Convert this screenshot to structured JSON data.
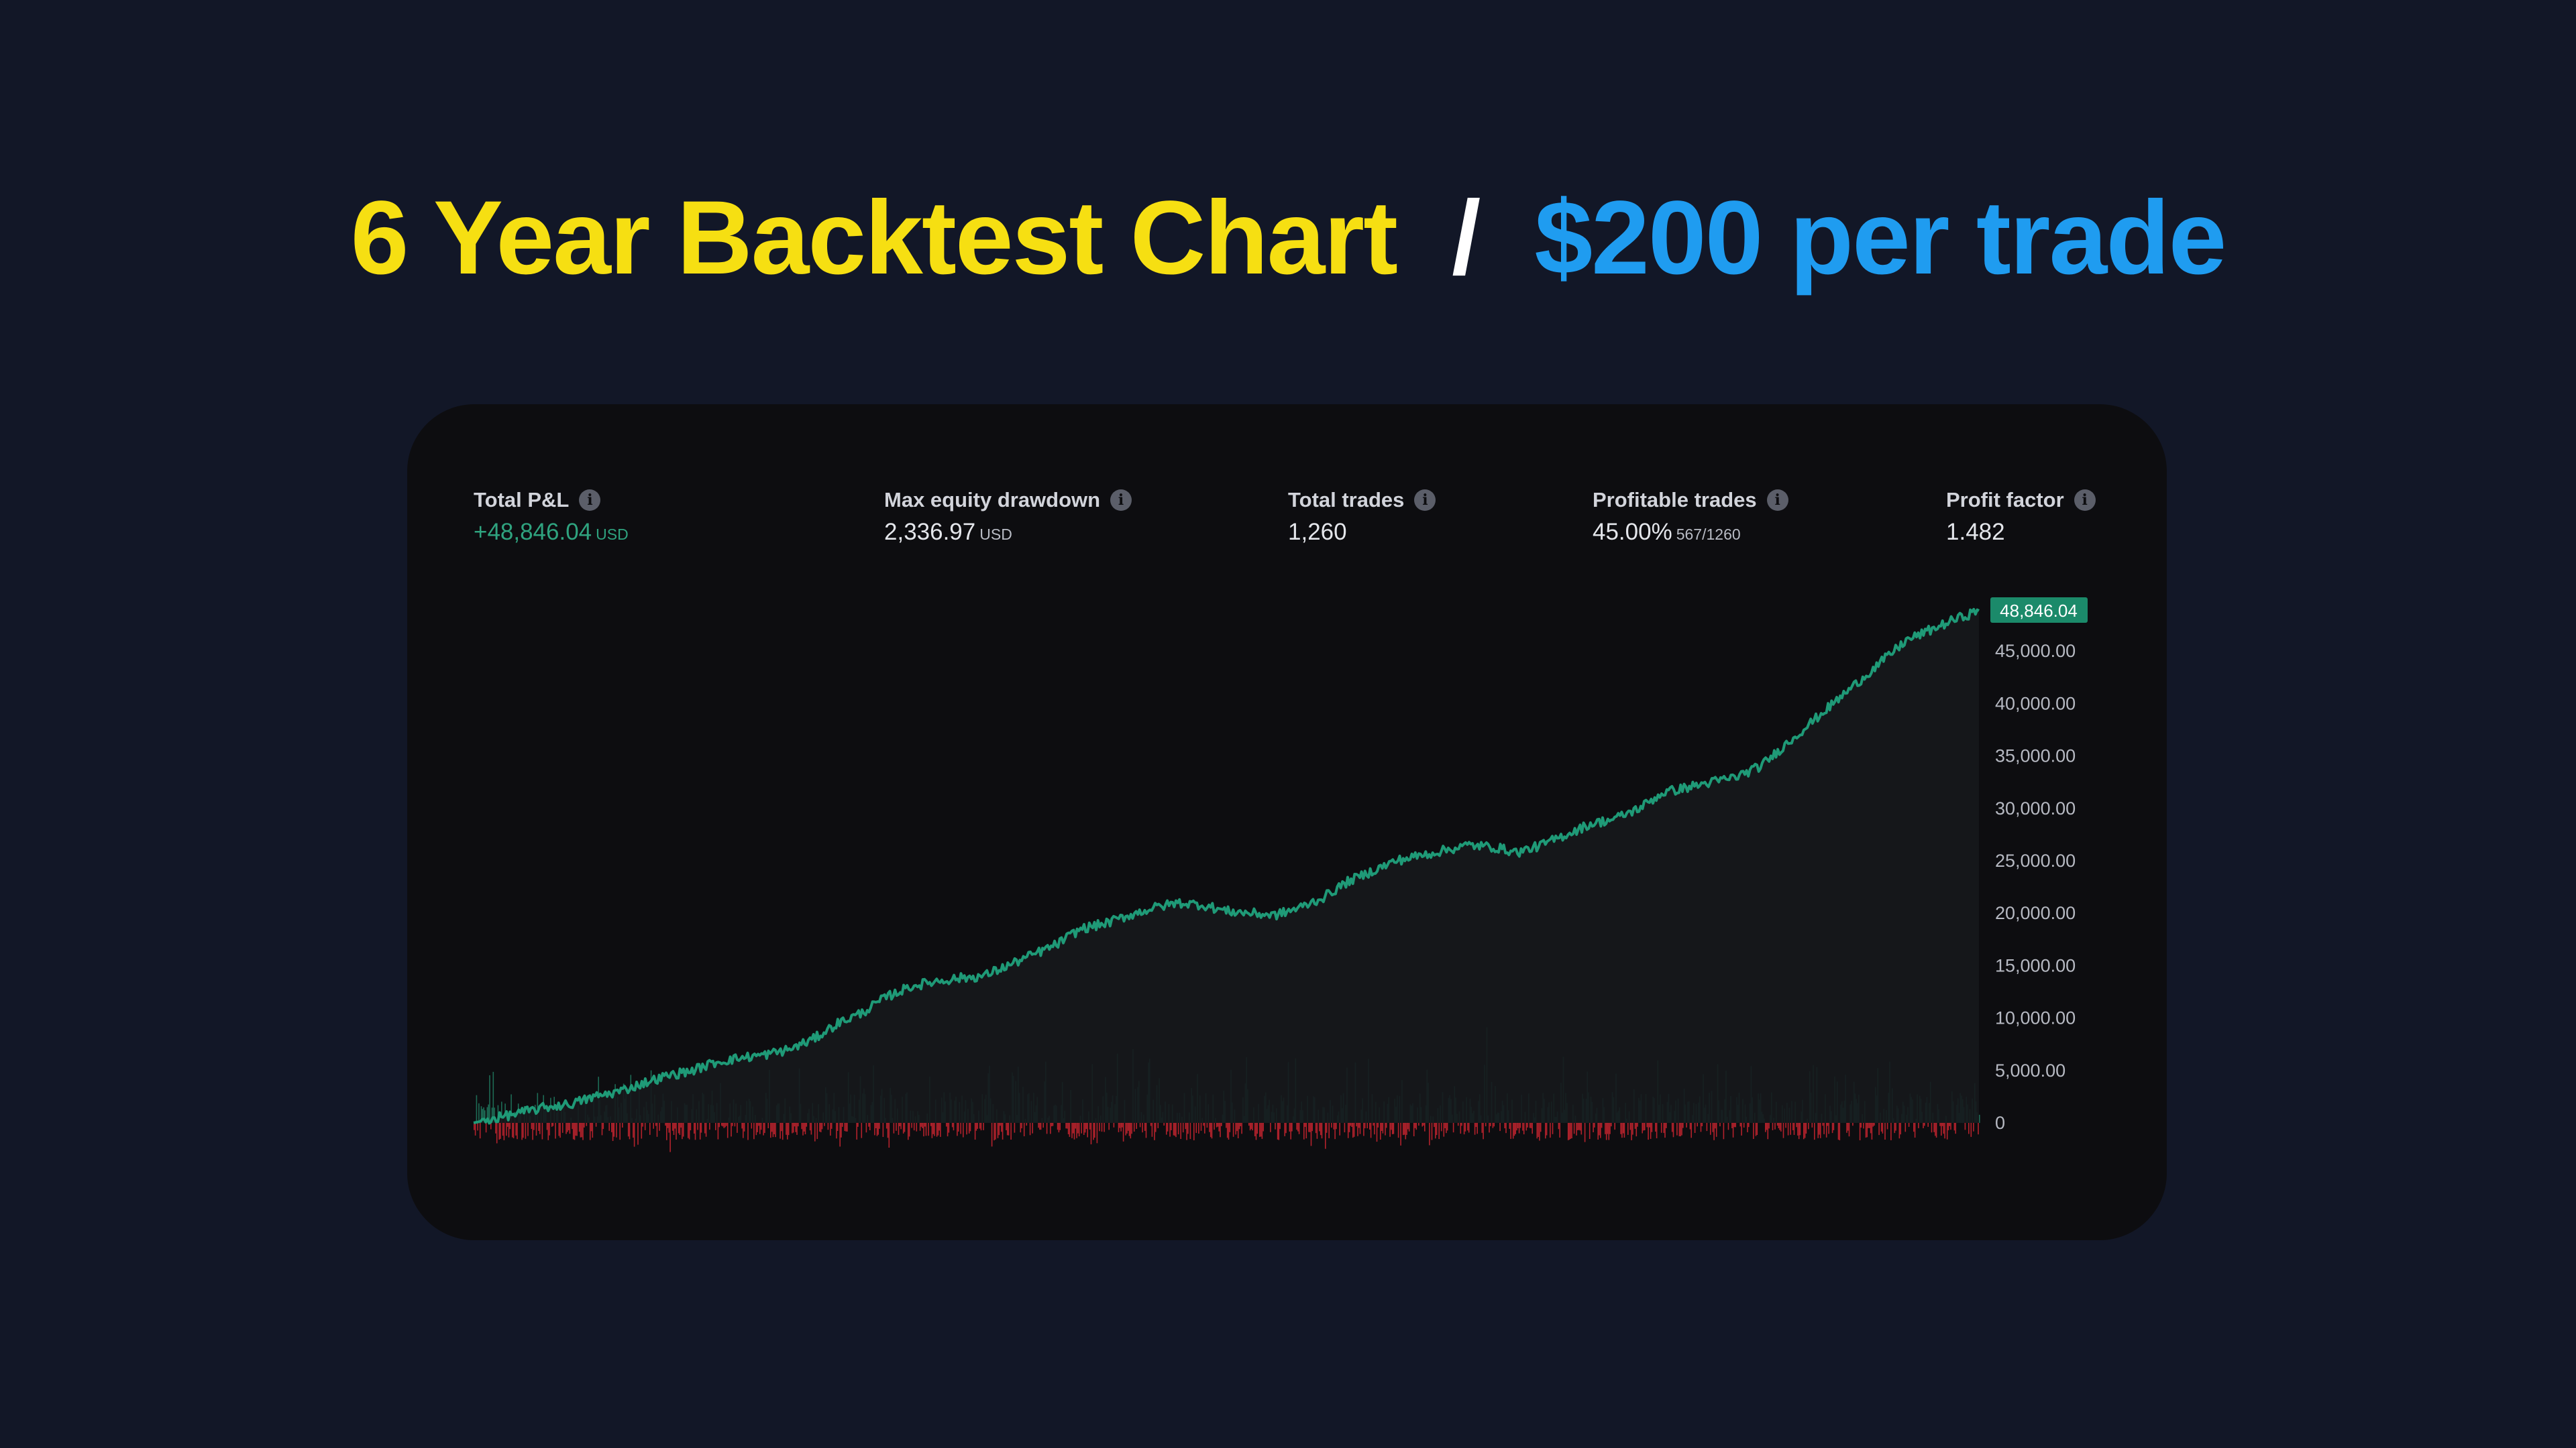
{
  "headline": {
    "part1": "6 Year Backtest Chart",
    "separator": "/",
    "part2": "$200 per trade",
    "colors": {
      "part1": "#f6df12",
      "separator": "#ffffff",
      "part2": "#1f9cf0"
    }
  },
  "metrics": [
    {
      "label": "Total P&L",
      "value": "+48,846.04",
      "unit": "USD",
      "positive": true
    },
    {
      "label": "Max equity drawdown",
      "value": "2,336.97",
      "unit": "USD"
    },
    {
      "label": "Total trades",
      "value": "1,260",
      "unit": ""
    },
    {
      "label": "Profitable trades",
      "value": "45.00%",
      "unit": "567/1260"
    },
    {
      "label": "Profit factor",
      "value": "1.482",
      "unit": ""
    }
  ],
  "chart_data": {
    "type": "line",
    "series": [
      {
        "values": [
          0,
          500,
          1000,
          1500,
          1800,
          2500,
          3000,
          3800,
          4500,
          5000,
          5800,
          6200,
          6500,
          7000,
          8000,
          9500,
          10500,
          12000,
          13000,
          13500,
          13800,
          14000,
          15000,
          16000,
          17000,
          18500,
          19000,
          19800,
          20500,
          21000,
          20800,
          20200,
          20000,
          19800,
          20500,
          21500,
          23000,
          24000,
          25000,
          25500,
          26000,
          26500,
          26300,
          25800,
          26500,
          27500,
          28500,
          29000,
          30000,
          31500,
          32000,
          32500,
          33000,
          34000,
          36000,
          38000,
          40000,
          42000,
          44000,
          46000,
          47000,
          48000,
          48846.04
        ],
        "color": "#1f9a77"
      }
    ],
    "per_trade_bars": {
      "positive_color": "#1d6b55",
      "negative_color": "#b3222c"
    },
    "y_ticks": [
      "45,000.00",
      "40,000.00",
      "35,000.00",
      "30,000.00",
      "25,000.00",
      "20,000.00",
      "15,000.00",
      "10,000.00",
      "5,000.00",
      "0"
    ],
    "y_tick_values": [
      45000,
      40000,
      35000,
      30000,
      25000,
      20000,
      15000,
      10000,
      5000,
      0
    ],
    "ylim": [
      0,
      48846.04
    ],
    "last_value_label": "48,846.04",
    "last_value_color": "#1b8a6a",
    "axis_position": "right",
    "grid": false
  }
}
